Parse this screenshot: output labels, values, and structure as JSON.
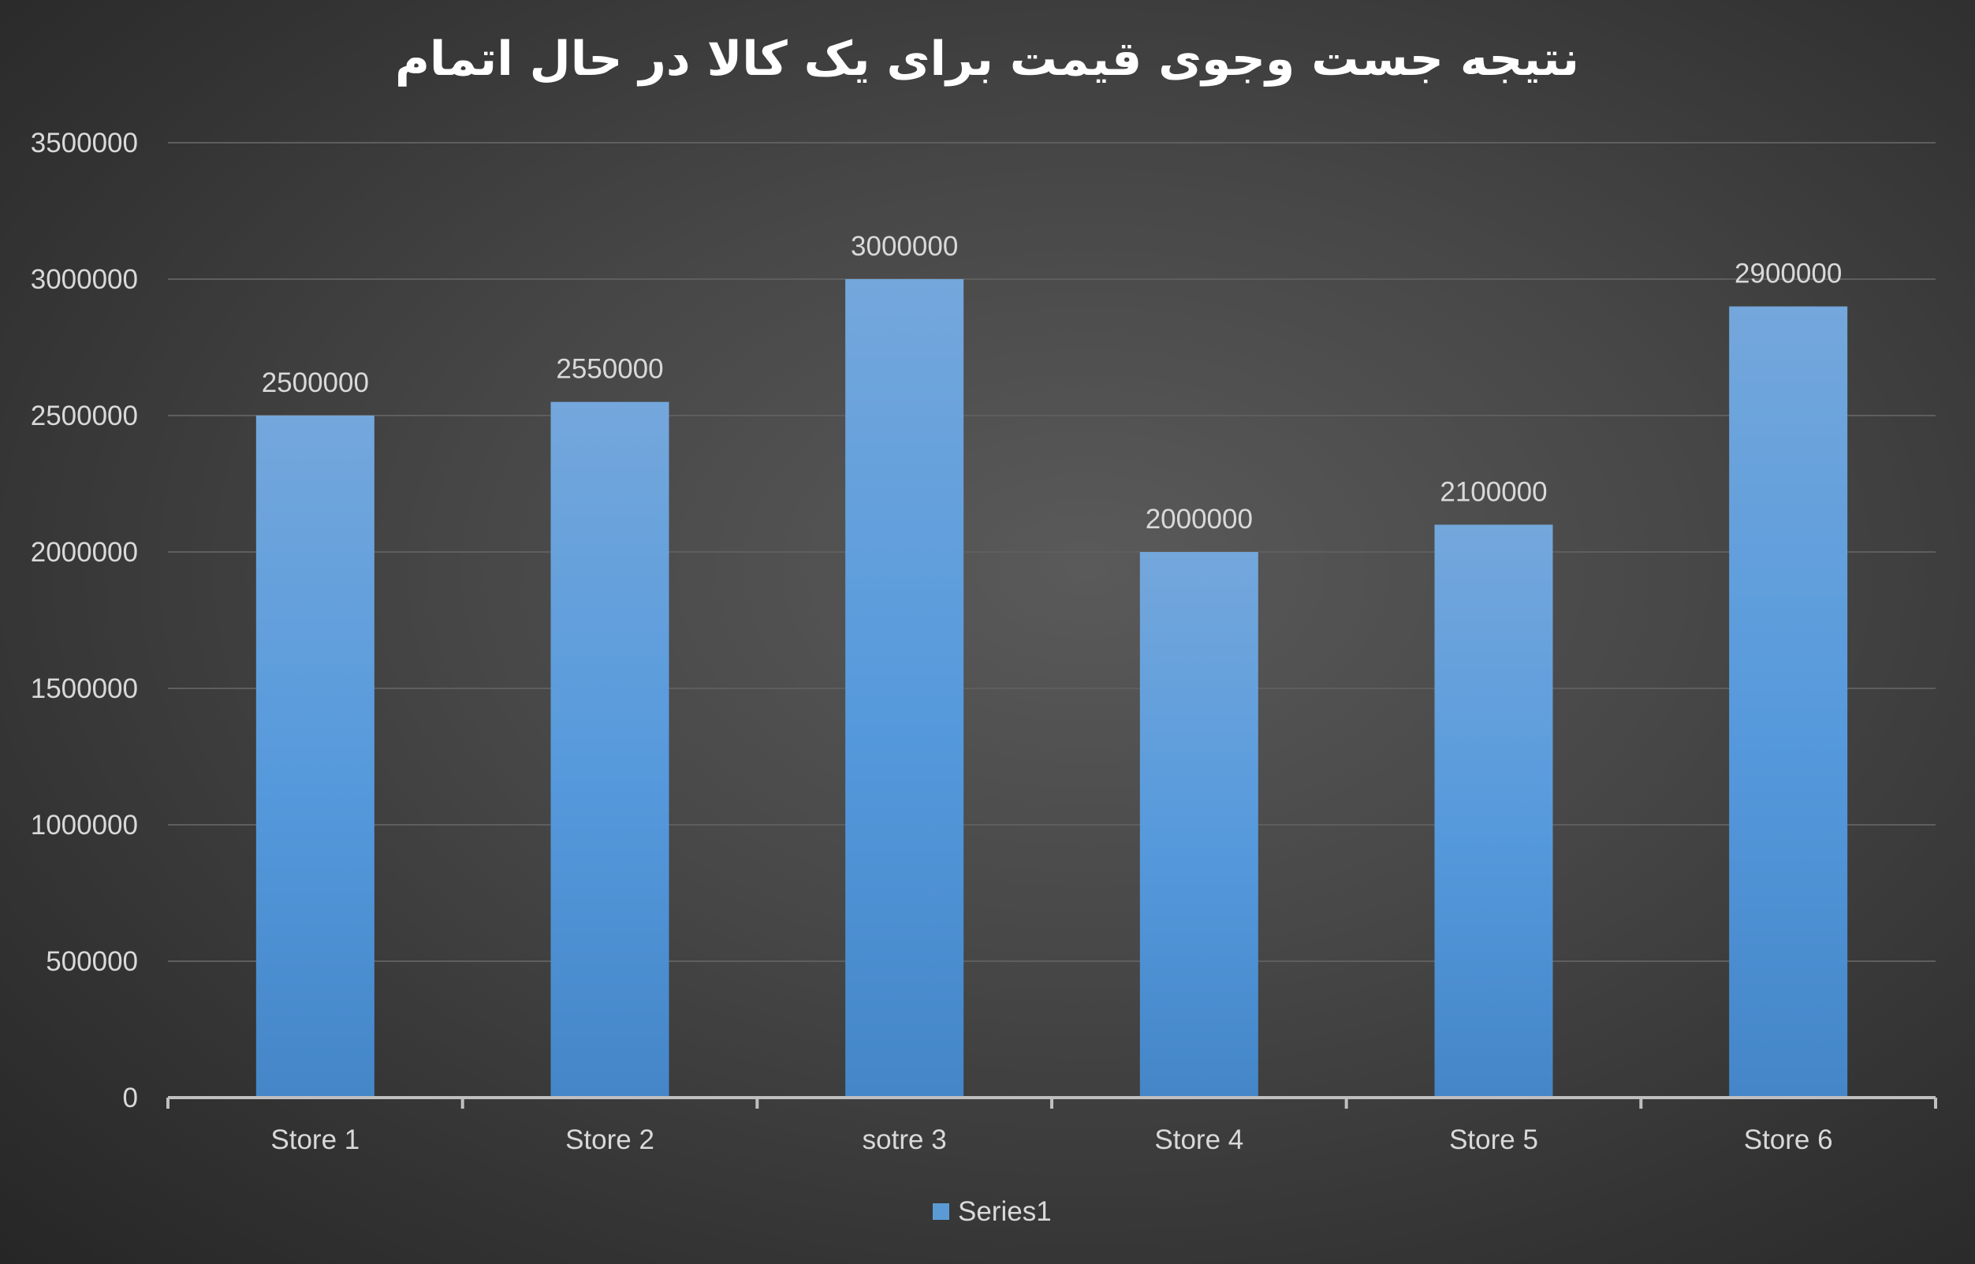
{
  "chart_data": {
    "type": "bar",
    "title": "نتیجه جست وجوی قیمت برای یک کالا در حال اتمام",
    "categories": [
      "Store 1",
      "Store 2",
      "sotre 3",
      "Store 4",
      "Store 5",
      "Store 6"
    ],
    "series": [
      {
        "name": "Series1",
        "values": [
          2500000,
          2550000,
          3000000,
          2000000,
          2100000,
          2900000
        ]
      }
    ],
    "xlabel": "",
    "ylabel": "",
    "ylim": [
      0,
      3500000
    ],
    "yticks": [
      0,
      500000,
      1000000,
      1500000,
      2000000,
      2500000,
      3000000,
      3500000
    ],
    "data_labels": true,
    "grid": true,
    "legend": "bottom",
    "colors": {
      "bar_top": "#74a7dc",
      "bar_bottom": "#4486c8",
      "legend_swatch": "#5b9bd5"
    }
  }
}
